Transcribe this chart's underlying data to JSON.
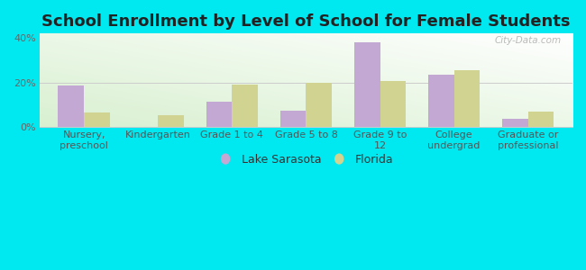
{
  "title": "School Enrollment by Level of School for Female Students",
  "categories": [
    "Nursery,\npreschool",
    "Kindergarten",
    "Grade 1 to 4",
    "Grade 5 to 8",
    "Grade 9 to\n12",
    "College\nundergrad",
    "Graduate or\nprofessional"
  ],
  "lake_sarasota": [
    18.5,
    0,
    11.5,
    7.5,
    38.0,
    23.5,
    3.5
  ],
  "florida": [
    6.5,
    5.5,
    19.0,
    20.0,
    20.5,
    25.5,
    7.0
  ],
  "lake_color": "#c4a8d4",
  "florida_color": "#d0d490",
  "background_outer": "#00e8f0",
  "ylim": [
    0,
    42
  ],
  "yticks": [
    0,
    20,
    40
  ],
  "ytick_labels": [
    "0%",
    "20%",
    "40%"
  ],
  "bar_width": 0.35,
  "legend_lake": "Lake Sarasota",
  "legend_florida": "Florida",
  "watermark": "City-Data.com",
  "title_fontsize": 13,
  "tick_fontsize": 8,
  "legend_fontsize": 9
}
